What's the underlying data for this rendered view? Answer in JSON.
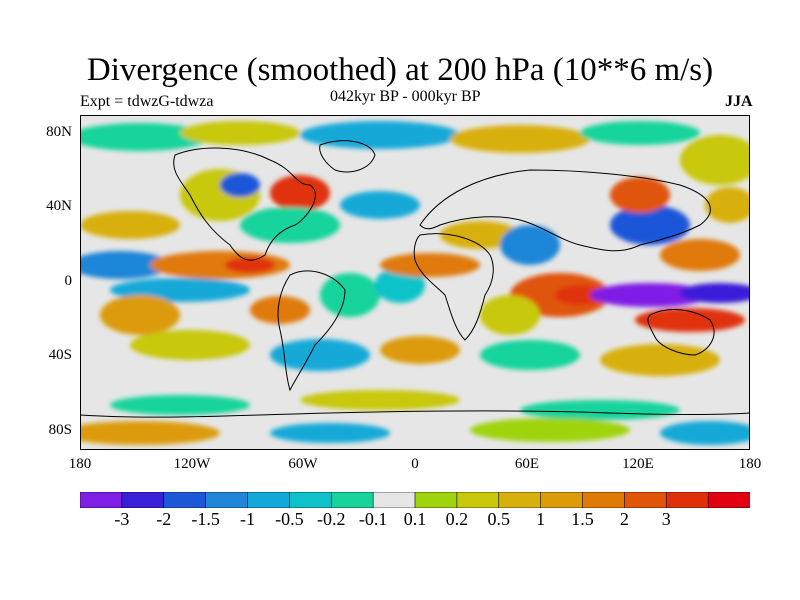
{
  "title": "Divergence (smoothed) at 200 hPa (10**6 m/s)",
  "subtitle_left": "Expt = tdwzG-tdwza",
  "subtitle_center": "042kyr BP - 000kyr BP",
  "subtitle_right": "JJA",
  "map": {
    "projection": "cylindrical equidistant",
    "lon_range": [
      -180,
      180
    ],
    "lat_range": [
      -90,
      90
    ],
    "coastlines": true,
    "y_tick_labels": [
      "80N",
      "40N",
      "0",
      "40S",
      "80S"
    ],
    "x_tick_labels": [
      "180",
      "120W",
      "60W",
      "0",
      "60E",
      "120E",
      "180"
    ]
  },
  "colorbar": {
    "colors": [
      "#7f1fe6",
      "#3a1fd8",
      "#1c57d8",
      "#1f86d8",
      "#12a9d8",
      "#0fc2c9",
      "#18d49b",
      "#e6e6e6",
      "#9fd40c",
      "#c8c80c",
      "#d8b00c",
      "#dc9b08",
      "#e07a07",
      "#e05508",
      "#e0300a",
      "#e0000f"
    ],
    "labels": [
      "-3",
      "-2",
      "-1.5",
      "-1",
      "-0.5",
      "-0.2",
      "-0.1",
      "0.1",
      "0.2",
      "0.5",
      "1",
      "1.5",
      "2",
      "3"
    ]
  }
}
